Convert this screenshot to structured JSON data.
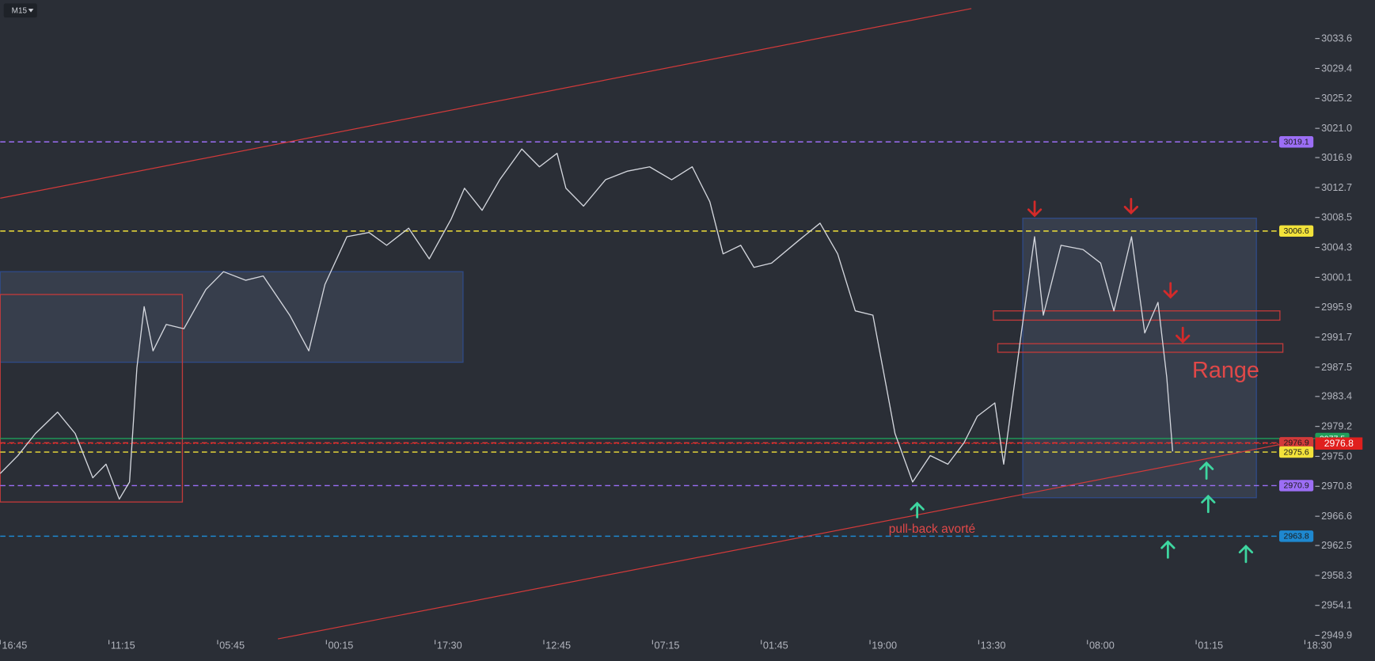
{
  "chart_data": {
    "type": "line",
    "timeframe": "M15",
    "x": [
      0,
      12,
      24,
      39,
      51,
      63,
      72,
      81,
      88,
      93,
      98,
      104,
      113,
      125,
      140,
      152,
      167,
      179,
      197,
      210,
      221,
      236,
      251,
      263,
      278,
      292,
      307,
      316,
      328,
      340,
      355,
      367,
      379,
      385,
      397,
      412,
      427,
      442,
      457,
      471,
      483,
      492,
      504,
      513,
      525,
      543,
      558,
      570,
      582,
      594,
      603,
      609,
      621,
      633,
      645,
      656,
      665,
      677,
      683,
      695,
      704,
      710,
      722,
      737,
      749,
      758,
      770,
      779,
      788,
      794,
      798
    ],
    "values": [
      2972.6,
      2975.1,
      2978.2,
      2981.2,
      2978.2,
      2972.0,
      2973.9,
      2969.0,
      2971.4,
      2987.4,
      2996.0,
      2989.8,
      2993.5,
      2992.9,
      2998.4,
      3000.9,
      2999.7,
      3000.3,
      2994.8,
      2989.8,
      2999.1,
      3005.8,
      3006.4,
      3004.6,
      3007.0,
      3002.7,
      3008.3,
      3012.6,
      3009.5,
      3013.8,
      3018.1,
      3015.6,
      3017.5,
      3012.6,
      3010.1,
      3013.8,
      3015.0,
      3015.6,
      3013.8,
      3015.6,
      3010.7,
      3003.4,
      3004.6,
      3001.5,
      3002.1,
      3005.2,
      3007.7,
      3003.4,
      2995.4,
      2994.8,
      2984.9,
      2978.2,
      2971.4,
      2975.1,
      2973.9,
      2976.9,
      2980.6,
      2982.5,
      2973.9,
      2992.3,
      3005.8,
      2994.8,
      3004.6,
      3004.0,
      3002.1,
      2995.4,
      3005.8,
      2992.3,
      2996.6,
      2986.1,
      2975.7
    ],
    "color": "#d4d7de",
    "xlim": [
      0,
      895
    ],
    "xticks": [
      {
        "value": 0,
        "label": "16:45"
      },
      {
        "value": 74,
        "label": "11:15"
      },
      {
        "value": 148,
        "label": "05:45"
      },
      {
        "value": 222,
        "label": "00:15"
      },
      {
        "value": 296,
        "label": "17:30"
      },
      {
        "value": 370,
        "label": "12:45"
      },
      {
        "value": 444,
        "label": "07:15"
      },
      {
        "value": 518,
        "label": "01:45"
      },
      {
        "value": 592,
        "label": "19:00"
      },
      {
        "value": 666,
        "label": "13:30"
      },
      {
        "value": 740,
        "label": "08:00"
      },
      {
        "value": 814,
        "label": "01:15"
      },
      {
        "value": 888,
        "label": "18:30"
      }
    ],
    "ylim": [
      2946.3,
      3039.0
    ],
    "yticks": [
      3033.6,
      3029.4,
      3025.2,
      {
        "value": 3021.0,
        "label": "3021.0"
      },
      3016.9,
      3012.7,
      3008.5,
      3004.3,
      3000.1,
      2995.9,
      2991.7,
      2987.5,
      2983.4,
      2979.2,
      {
        "value": 2975.0,
        "label": "2975.0"
      },
      2970.8,
      2966.6,
      2962.5,
      2958.3,
      2954.1,
      2949.9
    ],
    "levels": [
      {
        "value": 3019.1,
        "color": "#9c6ef5",
        "style": "dashed"
      },
      {
        "value": 3006.6,
        "color": "#f2e23a",
        "style": "dashed"
      },
      {
        "value": 2977.5,
        "color": "#1f9e5a",
        "style": "solid"
      },
      {
        "value": 2976.9,
        "color": "#d23a3a",
        "style": "dashed"
      },
      {
        "value": 2975.6,
        "color": "#f2e23a",
        "style": "dashed"
      },
      {
        "value": 2970.9,
        "color": "#9c6ef5",
        "style": "dashed"
      },
      {
        "value": 2963.8,
        "color": "#1e88d0",
        "style": "dashed"
      }
    ],
    "last_price": {
      "value": 2976.8,
      "color": "#e0201e"
    },
    "trendlines": [
      {
        "x": [
          0,
          661
        ],
        "y": [
          3011.2,
          3037.8
        ],
        "color": "#d23a3a"
      },
      {
        "x": [
          189,
          892
        ],
        "y": [
          2949.4,
          2977.5
        ],
        "color": "#d23a3a"
      }
    ],
    "zones": [
      {
        "x": [
          0,
          315
        ],
        "y": [
          2988.2,
          3000.9
        ],
        "color": "#3a4150",
        "border": "#2f4a86"
      },
      {
        "x": [
          0,
          124
        ],
        "y": [
          2968.6,
          2997.7
        ],
        "color": "none",
        "border": "#c03a3a"
      },
      {
        "x": [
          696,
          855
        ],
        "y": [
          2969.2,
          3008.4
        ],
        "color": "#3a4150",
        "border": "#2f4a86"
      },
      {
        "x": [
          676,
          871
        ],
        "y": [
          2994.1,
          2995.4
        ],
        "color": "none",
        "border": "#c03a3a"
      },
      {
        "x": [
          679,
          873
        ],
        "y": [
          2989.6,
          2990.8
        ],
        "color": "none",
        "border": "#c03a3a"
      }
    ],
    "annotations": [
      "Range",
      "pull-back avorté"
    ]
  }
}
